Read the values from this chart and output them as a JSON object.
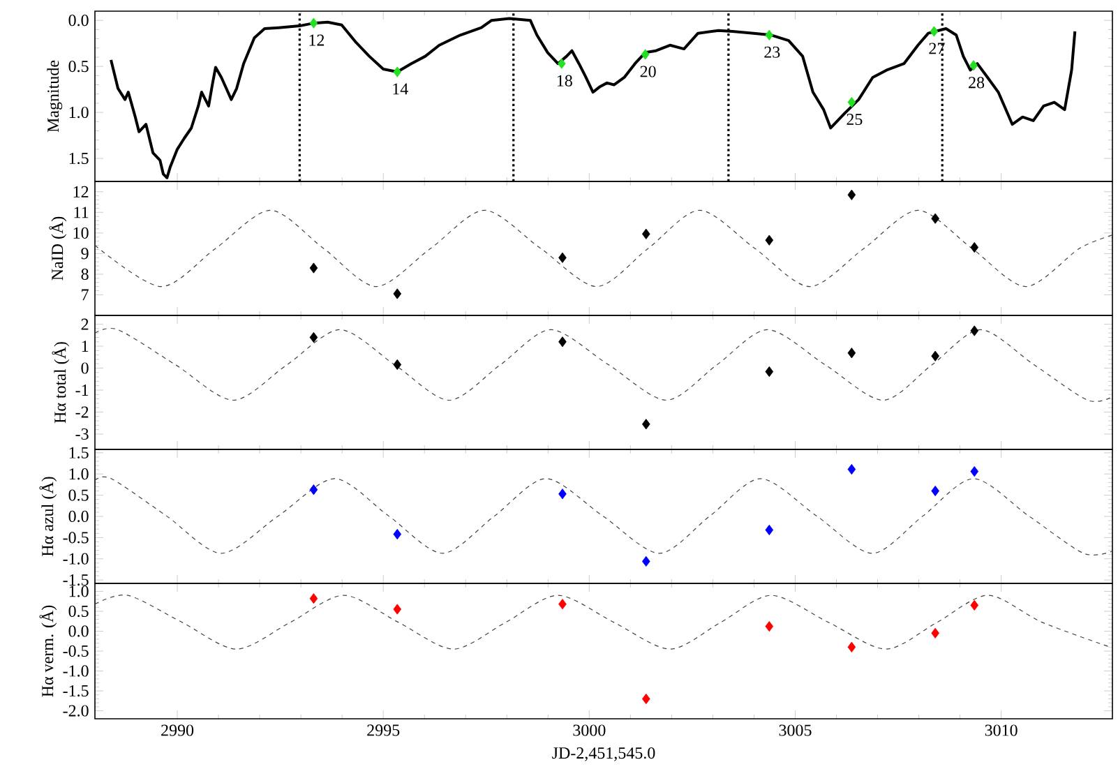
{
  "chart_data": [
    {
      "type": "line",
      "ylabel": "Magnitude",
      "ylim": [
        1.75,
        -0.1
      ],
      "xlim": [
        2988,
        3012.7
      ],
      "xticks": [
        2990,
        2995,
        3000,
        3005,
        3010
      ],
      "tick_labels": "y",
      "yticks": [
        {
          "value": 0,
          "label": "0.0"
        },
        0.5,
        {
          "value": 1,
          "label": "1.0"
        },
        1.5
      ],
      "ref_lines": [
        {
          "axis": "x",
          "value": 2992.97,
          "line_style": "dotted",
          "color": "#000000"
        },
        {
          "axis": "x",
          "value": 2998.16,
          "line_style": "dotted",
          "color": "#000000"
        },
        {
          "axis": "x",
          "value": 3003.38,
          "line_style": "dotted",
          "color": "#000000"
        },
        {
          "axis": "x",
          "value": 3008.57,
          "line_style": "dotted",
          "color": "#000000"
        }
      ],
      "series": [
        {
          "color": "#000000",
          "marker": "none",
          "line_style": "solid",
          "x": [
            2988.39,
            2988.56,
            2988.73,
            2988.81,
            2988.98,
            2989.07,
            2989.24,
            2989.41,
            2989.58,
            2989.66,
            2989.75,
            2989.83,
            2990.0,
            2990.17,
            2990.34,
            2990.51,
            2990.59,
            2990.76,
            2990.85,
            2990.93,
            2991.07,
            2991.19,
            2991.31,
            2991.44,
            2991.61,
            2991.87,
            2992.12,
            2992.46,
            2992.97,
            2993.31,
            2993.65,
            2993.99,
            2994.32,
            2994.66,
            2995.0,
            2995.34,
            2995.68,
            2996.02,
            2996.36,
            2996.87,
            2997.38,
            2997.63,
            2998.06,
            2998.57,
            2998.73,
            2998.99,
            2999.24,
            2999.45,
            2999.58,
            2999.75,
            2999.92,
            3000.09,
            3000.26,
            3000.43,
            3000.6,
            3000.85,
            3001.11,
            3001.36,
            3001.62,
            3001.96,
            3002.3,
            3002.64,
            3003.14,
            3003.48,
            3003.99,
            3004.42,
            3004.84,
            3005.18,
            3005.43,
            3005.69,
            3005.86,
            3006.03,
            3006.2,
            3006.54,
            3006.88,
            3007.22,
            3007.64,
            3007.98,
            3008.23,
            3008.66,
            3008.91,
            3009.08,
            3009.25,
            3009.42,
            3009.67,
            3009.93,
            3010.27,
            3010.52,
            3010.78,
            3011.03,
            3011.29,
            3011.54,
            3011.71,
            3011.79
          ],
          "values": [
            0.43,
            0.74,
            0.86,
            0.78,
            1.05,
            1.21,
            1.13,
            1.44,
            1.52,
            1.67,
            1.71,
            1.59,
            1.4,
            1.28,
            1.17,
            0.93,
            0.78,
            0.93,
            0.7,
            0.51,
            0.62,
            0.74,
            0.86,
            0.74,
            0.47,
            0.19,
            0.09,
            0.08,
            0.06,
            0.03,
            0.02,
            0.05,
            0.23,
            0.39,
            0.53,
            0.56,
            0.47,
            0.39,
            0.27,
            0.16,
            0.08,
            0.0,
            -0.02,
            0.0,
            0.16,
            0.35,
            0.47,
            0.39,
            0.33,
            0.47,
            0.62,
            0.78,
            0.72,
            0.68,
            0.7,
            0.62,
            0.47,
            0.35,
            0.33,
            0.27,
            0.31,
            0.14,
            0.11,
            0.12,
            0.14,
            0.16,
            0.22,
            0.39,
            0.78,
            0.97,
            1.17,
            1.09,
            1.01,
            0.86,
            0.62,
            0.54,
            0.47,
            0.27,
            0.14,
            0.09,
            0.16,
            0.39,
            0.54,
            0.47,
            0.62,
            0.78,
            1.13,
            1.05,
            1.09,
            0.93,
            0.89,
            0.97,
            0.54,
            0.12
          ]
        },
        {
          "type": "scatter",
          "color": "#22e022",
          "marker": "diamond",
          "x": [
            2993.31,
            2995.34,
            2999.33,
            3001.36,
            3004.37,
            3006.37,
            3008.37,
            3009.33
          ],
          "values": [
            0.03,
            0.56,
            0.47,
            0.37,
            0.16,
            0.89,
            0.12,
            0.49
          ]
        }
      ],
      "annotations": [
        {
          "text": "12",
          "x": 2993.31,
          "y": 0.03
        },
        {
          "text": "14",
          "x": 2995.34,
          "y": 0.56
        },
        {
          "text": "18",
          "x": 2999.33,
          "y": 0.47
        },
        {
          "text": "20",
          "x": 3001.36,
          "y": 0.37
        },
        {
          "text": "23",
          "x": 3004.37,
          "y": 0.16
        },
        {
          "text": "25",
          "x": 3006.37,
          "y": 0.89
        },
        {
          "text": "27",
          "x": 3008.37,
          "y": 0.12
        },
        {
          "text": "28",
          "x": 3009.33,
          "y": 0.49
        }
      ]
    },
    {
      "type": "scatter",
      "ylabel": "NaID (Å)",
      "ylim": [
        6,
        12.5
      ],
      "xlim": [
        2988,
        3012.7
      ],
      "xticks": [
        2990,
        2995,
        3000,
        3005,
        3010
      ],
      "tick_labels": "y",
      "yticks": [
        7,
        8,
        9,
        10,
        11,
        12
      ],
      "series": [
        {
          "type": "line",
          "color": "#444444",
          "marker": "none",
          "line_style": "dashed",
          "x": [
            2988.0,
            2989.6,
            2990.93,
            2992.26,
            2993.55,
            2994.83,
            2996.15,
            2997.46,
            2998.82,
            3000.18,
            3001.43,
            3002.68,
            3004.02,
            3005.35,
            3006.67,
            3007.98,
            3009.29,
            3010.6,
            3011.9,
            3012.7
          ],
          "values": [
            9.4,
            7.4,
            9.25,
            11.1,
            9.25,
            7.4,
            9.25,
            11.1,
            9.25,
            7.4,
            9.25,
            11.1,
            9.25,
            7.4,
            9.25,
            11.1,
            9.25,
            7.4,
            9.25,
            9.9
          ]
        },
        {
          "color": "#000000",
          "marker": "diamond",
          "x": [
            2993.31,
            2995.34,
            2999.35,
            3001.38,
            3004.37,
            3006.37,
            3008.4,
            3009.35
          ],
          "values": [
            8.3,
            7.05,
            8.8,
            9.95,
            9.65,
            11.85,
            10.7,
            9.3
          ]
        }
      ]
    },
    {
      "type": "scatter",
      "ylabel": "Hα total (Å)",
      "ylim": [
        -3.7,
        2.4
      ],
      "xlim": [
        2988,
        3012.7
      ],
      "xticks": [
        2990,
        2995,
        3000,
        3005,
        3010
      ],
      "tick_labels": "y",
      "yticks": [
        -3,
        -2,
        -1,
        0,
        1,
        2
      ],
      "series": [
        {
          "type": "line",
          "color": "#444444",
          "marker": "none",
          "line_style": "dashed",
          "x": [
            2988.0,
            2988.56,
            2989.96,
            2991.36,
            2992.66,
            2993.95,
            2995.28,
            2996.6,
            2997.84,
            2999.07,
            3000.47,
            3001.87,
            3003.1,
            3004.33,
            3005.73,
            3007.13,
            3008.32,
            3009.5,
            3010.8,
            3012.1,
            3012.7
          ],
          "values": [
            1.6,
            1.75,
            0.15,
            -1.46,
            0.15,
            1.75,
            0.15,
            -1.46,
            0.15,
            1.75,
            0.15,
            -1.46,
            0.15,
            1.75,
            0.15,
            -1.46,
            0.15,
            1.75,
            0.15,
            -1.46,
            -1.3
          ]
        },
        {
          "color": "#000000",
          "marker": "diamond",
          "x": [
            2993.31,
            2995.34,
            2999.35,
            3001.38,
            3004.37,
            3006.37,
            3008.4,
            3009.35
          ],
          "values": [
            1.4,
            0.16,
            1.2,
            -2.55,
            -0.16,
            0.69,
            0.55,
            1.7
          ]
        }
      ]
    },
    {
      "type": "scatter",
      "ylabel": "Hα azul (Å)",
      "ylim": [
        -1.58,
        1.58
      ],
      "xlim": [
        2988,
        3012.7
      ],
      "xticks": [
        2990,
        2995,
        3000,
        3005,
        3010
      ],
      "tick_labels": "y",
      "yticks": [
        -1.5,
        {
          "value": -1,
          "label": "-1.0"
        },
        -0.5,
        {
          "value": 0,
          "label": "0.0"
        },
        0.5,
        {
          "value": 1,
          "label": "1.0"
        },
        1.5
      ],
      "series": [
        {
          "type": "line",
          "color": "#444444",
          "marker": "none",
          "line_style": "dashed",
          "x": [
            2988.0,
            2988.4,
            2989.74,
            2991.07,
            2992.45,
            2993.82,
            2995.13,
            2996.44,
            2997.7,
            2998.95,
            3000.33,
            3001.7,
            3002.93,
            3004.16,
            3005.52,
            3006.87,
            3008.1,
            3009.33,
            3010.67,
            3012.0,
            3012.7
          ],
          "values": [
            0.85,
            0.89,
            0.01,
            -0.87,
            0.01,
            0.89,
            0.01,
            -0.87,
            0.01,
            0.89,
            0.01,
            -0.87,
            0.01,
            0.89,
            0.01,
            -0.87,
            0.01,
            0.89,
            0.01,
            -0.87,
            -0.82
          ]
        },
        {
          "color": "#0000ff",
          "marker": "diamond",
          "x": [
            2993.31,
            2995.34,
            2999.35,
            3001.38,
            3004.37,
            3006.37,
            3008.4,
            3009.35
          ],
          "values": [
            0.63,
            -0.42,
            0.53,
            -1.06,
            -0.32,
            1.11,
            0.6,
            1.06
          ]
        }
      ]
    },
    {
      "type": "scatter",
      "ylabel": "Hα verm. (Å)",
      "xlabel": "JD-2,451,545.0",
      "ylim": [
        -2.2,
        1.2
      ],
      "xlim": [
        2988,
        3012.7
      ],
      "xticks": [
        2990,
        2995,
        3000,
        3005,
        3010
      ],
      "yticks": [
        {
          "value": -2,
          "label": "-2.0"
        },
        -1.5,
        {
          "value": -1,
          "label": "-1.0"
        },
        -0.5,
        {
          "value": 0,
          "label": "0.0"
        },
        0.5,
        {
          "value": 1,
          "label": "1.0"
        }
      ],
      "series": [
        {
          "type": "line",
          "color": "#444444",
          "marker": "none",
          "line_style": "dashed",
          "x": [
            2988.0,
            2988.8,
            2990.12,
            2991.44,
            2992.74,
            2994.04,
            2995.37,
            2996.7,
            2997.97,
            2999.24,
            3000.6,
            3001.96,
            3003.19,
            3004.42,
            3005.81,
            3007.2,
            3008.44,
            3009.68,
            3011.0,
            3012.7
          ],
          "values": [
            0.68,
            0.9,
            0.22,
            -0.45,
            0.22,
            0.9,
            0.22,
            -0.45,
            0.22,
            0.9,
            0.22,
            -0.45,
            0.22,
            0.9,
            0.22,
            -0.45,
            0.22,
            0.9,
            0.22,
            -0.42
          ]
        },
        {
          "color": "#ff0000",
          "marker": "diamond",
          "x": [
            2993.31,
            2995.34,
            2999.35,
            3001.38,
            3004.37,
            3006.37,
            3008.4,
            3009.35
          ],
          "values": [
            0.82,
            0.55,
            0.68,
            -1.7,
            0.12,
            -0.4,
            -0.05,
            0.65
          ]
        }
      ]
    }
  ]
}
